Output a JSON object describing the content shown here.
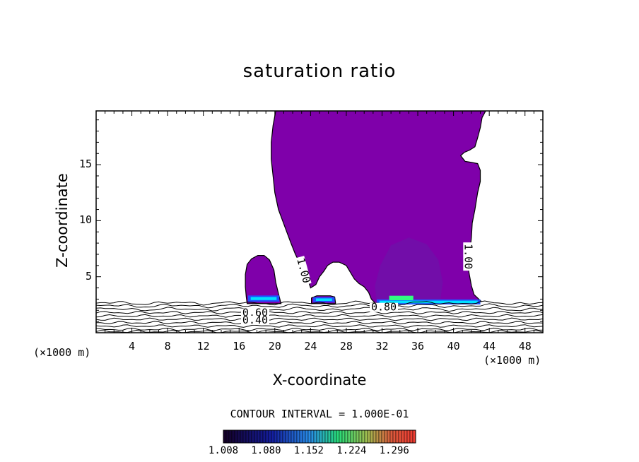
{
  "chart_data": {
    "type": "contour",
    "title": "saturation ratio",
    "xlabel": "X-coordinate",
    "ylabel": "Z-coordinate",
    "x_unit": "(×1000 m)",
    "xlim": [
      0,
      50
    ],
    "ylim": [
      0,
      19.8
    ],
    "x_ticks": [
      4,
      8,
      12,
      16,
      20,
      24,
      28,
      32,
      36,
      40,
      44,
      48
    ],
    "y_ticks": [
      5,
      10,
      15
    ],
    "contour_interval_text": "CONTOUR INTERVAL = 1.000E-01",
    "contour_labels": [
      "1.00",
      "1.00",
      "0.80",
      "0.60",
      "0.40"
    ],
    "colorbar": {
      "tick_labels": [
        "1.008",
        "1.080",
        "1.152",
        "1.224",
        "1.296"
      ],
      "min": 1.008,
      "max": 1.332
    },
    "colors": {
      "fill": "#7f00aa",
      "fill_dark": "#6818a8",
      "cyan": "#00e0ff",
      "blue": "#2050ff",
      "green": "#30ff80",
      "line": "#000000"
    }
  }
}
